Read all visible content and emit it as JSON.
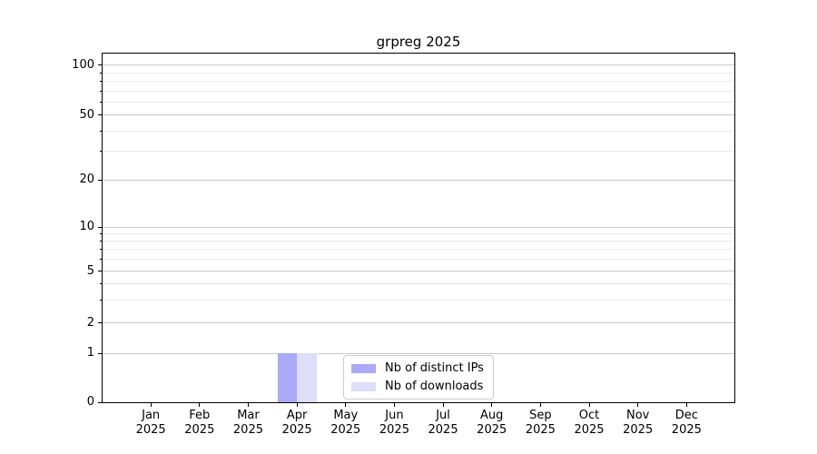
{
  "chart_data": {
    "type": "bar",
    "title": "grpreg 2025",
    "x_axis": {
      "months": [
        "Jan",
        "Feb",
        "Mar",
        "Apr",
        "May",
        "Jun",
        "Jul",
        "Aug",
        "Sep",
        "Oct",
        "Nov",
        "Dec"
      ],
      "year": "2025"
    },
    "y_axis": {
      "scale": "symlog",
      "major_ticks": [
        0,
        1,
        2,
        5,
        10,
        20,
        50,
        100
      ],
      "minor_ticks": [
        3,
        4,
        6,
        7,
        8,
        9,
        30,
        40,
        60,
        70,
        80,
        90
      ],
      "range": [
        0,
        118
      ]
    },
    "series": [
      {
        "name": "Nb of distinct IPs",
        "color": "#aaaaf6",
        "values": [
          0,
          0,
          0,
          1,
          0,
          0,
          0,
          0,
          0,
          0,
          0,
          0
        ]
      },
      {
        "name": "Nb of downloads",
        "color": "#dedef8",
        "values": [
          0,
          0,
          0,
          1,
          0,
          0,
          0,
          0,
          0,
          0,
          0,
          0
        ]
      }
    ],
    "legend": {
      "entries": [
        "Nb of distinct IPs",
        "Nb of downloads"
      ],
      "position": "inside-bottom-center"
    },
    "grid": "horizontal-major-and-minor"
  },
  "colors": {
    "background": "#ffffff",
    "spine": "#000000",
    "grid_major": "#c9c9c9",
    "grid_minor": "#eaeaea",
    "text": "#000000",
    "legend_border": "#cccccc"
  }
}
